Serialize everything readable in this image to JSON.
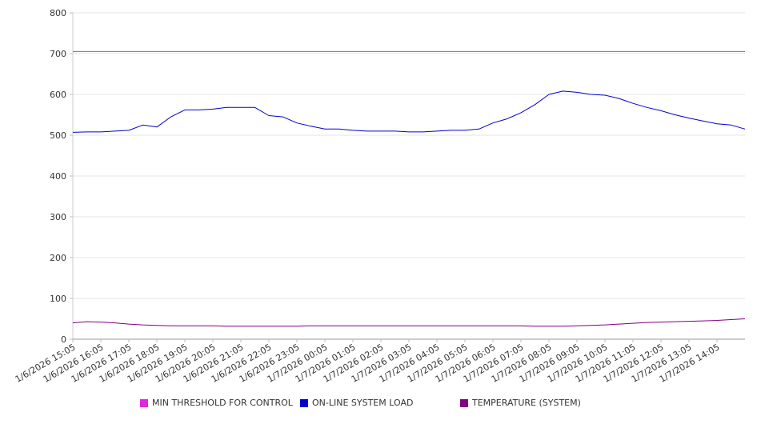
{
  "chart_data": {
    "type": "line",
    "title": "",
    "xlabel": "",
    "ylabel": "",
    "ylim": [
      0,
      800
    ],
    "yticks": [
      0,
      100,
      200,
      300,
      400,
      500,
      600,
      700,
      800
    ],
    "grid": "horizontal",
    "legend_position": "bottom",
    "x_tick_labels": [
      "1/6/2026 15:05",
      "1/6/2026 16:05",
      "1/6/2026 17:05",
      "1/6/2026 18:05",
      "1/6/2026 19:05",
      "1/6/2026 20:05",
      "1/6/2026 21:05",
      "1/6/2026 22:05",
      "1/6/2026 23:05",
      "1/7/2026 00:05",
      "1/7/2026 01:05",
      "1/7/2026 02:05",
      "1/7/2026 03:05",
      "1/7/2026 04:05",
      "1/7/2026 05:05",
      "1/7/2026 06:05",
      "1/7/2026 07:05",
      "1/7/2026 08:05",
      "1/7/2026 09:05",
      "1/7/2026 10:05",
      "1/7/2026 11:05",
      "1/7/2026 12:05",
      "1/7/2026 13:05",
      "1/7/2026 14:05"
    ],
    "x_points": [
      "1/6/2026 15:05",
      "1/6/2026 15:35",
      "1/6/2026 16:05",
      "1/6/2026 16:35",
      "1/6/2026 17:05",
      "1/6/2026 17:35",
      "1/6/2026 18:05",
      "1/6/2026 18:35",
      "1/6/2026 19:05",
      "1/6/2026 19:35",
      "1/6/2026 20:05",
      "1/6/2026 20:35",
      "1/6/2026 21:05",
      "1/6/2026 21:35",
      "1/6/2026 22:05",
      "1/6/2026 22:35",
      "1/6/2026 23:05",
      "1/6/2026 23:35",
      "1/7/2026 00:05",
      "1/7/2026 00:35",
      "1/7/2026 01:05",
      "1/7/2026 01:35",
      "1/7/2026 02:05",
      "1/7/2026 02:35",
      "1/7/2026 03:05",
      "1/7/2026 03:35",
      "1/7/2026 04:05",
      "1/7/2026 04:35",
      "1/7/2026 05:05",
      "1/7/2026 05:35",
      "1/7/2026 06:05",
      "1/7/2026 06:35",
      "1/7/2026 07:05",
      "1/7/2026 07:35",
      "1/7/2026 08:05",
      "1/7/2026 08:35",
      "1/7/2026 09:05",
      "1/7/2026 09:35",
      "1/7/2026 10:05",
      "1/7/2026 10:35",
      "1/7/2026 11:05",
      "1/7/2026 11:35",
      "1/7/2026 12:05",
      "1/7/2026 12:35",
      "1/7/2026 13:05",
      "1/7/2026 13:35",
      "1/7/2026 14:05",
      "1/7/2026 14:35",
      "1/7/2026 15:05"
    ],
    "series": [
      {
        "name": "MIN THRESHOLD FOR CONTROL",
        "color": "#e026e0",
        "values": [
          705,
          705,
          705,
          705,
          705,
          705,
          705,
          705,
          705,
          705,
          705,
          705,
          705,
          705,
          705,
          705,
          705,
          705,
          705,
          705,
          705,
          705,
          705,
          705,
          705,
          705,
          705,
          705,
          705,
          705,
          705,
          705,
          705,
          705,
          705,
          705,
          705,
          705,
          705,
          705,
          705,
          705,
          705,
          705,
          705,
          705,
          705,
          705,
          705
        ]
      },
      {
        "name": "ON-LINE SYSTEM LOAD",
        "color": "#0000cc",
        "values": [
          507,
          508,
          508,
          510,
          512,
          525,
          520,
          545,
          562,
          562,
          564,
          568,
          568,
          568,
          548,
          545,
          530,
          522,
          515,
          515,
          512,
          510,
          510,
          510,
          508,
          508,
          510,
          512,
          512,
          515,
          530,
          540,
          555,
          575,
          600,
          608,
          605,
          600,
          598,
          590,
          578,
          568,
          560,
          550,
          542,
          535,
          528,
          525,
          515
        ]
      },
      {
        "name": "TEMPERATURE (SYSTEM)",
        "color": "#800080",
        "values": [
          40,
          43,
          42,
          40,
          37,
          35,
          34,
          33,
          33,
          33,
          33,
          32,
          32,
          32,
          32,
          32,
          32,
          33,
          33,
          33,
          33,
          33,
          33,
          33,
          33,
          33,
          33,
          33,
          33,
          33,
          33,
          33,
          33,
          32,
          32,
          32,
          33,
          34,
          35,
          37,
          39,
          41,
          42,
          43,
          44,
          45,
          46,
          48,
          50
        ]
      }
    ]
  }
}
